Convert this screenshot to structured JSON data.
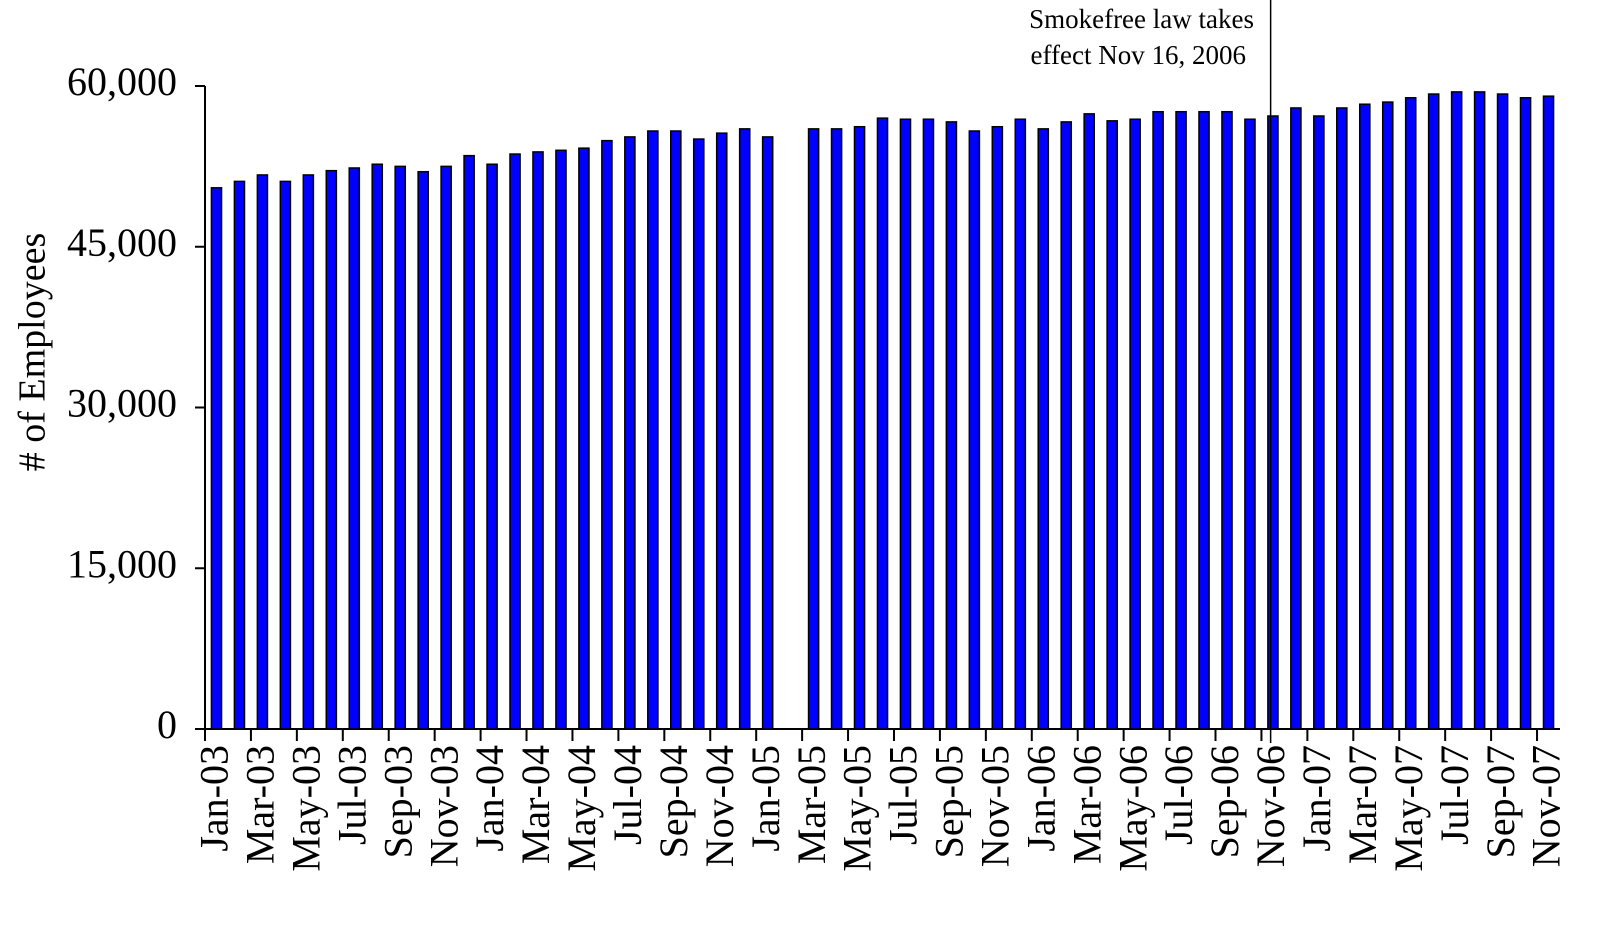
{
  "chart_data": {
    "type": "bar",
    "y_label": "# of Employees",
    "annotation": [
      "Smokefree law takes",
      "effect Nov 16, 2006"
    ],
    "color": "#0000ff",
    "categories": [
      "Jan-03",
      null,
      "Mar-03",
      null,
      "May-03",
      null,
      "Jul-03",
      null,
      "Sep-03",
      null,
      "Nov-03",
      null,
      "Jan-04",
      null,
      "Mar-04",
      null,
      "May-04",
      null,
      "Jul-04",
      null,
      "Sep-04",
      null,
      "Nov-04",
      null,
      "Jan-05",
      null,
      "Mar-05",
      null,
      "May-05",
      null,
      "Jul-05",
      null,
      "Sep-05",
      null,
      "Nov-05",
      null,
      "Jan-06",
      null,
      "Mar-06",
      null,
      "May-06",
      null,
      "Jul-06",
      null,
      "Sep-06",
      null,
      "Nov-06",
      null,
      "Jan-07",
      null,
      "Mar-07",
      null,
      "May-07",
      null,
      "Jul-07",
      null,
      "Sep-07",
      null,
      "Nov-07"
    ],
    "values": [
      50500,
      51100,
      51700,
      51100,
      51700,
      52100,
      52350,
      52700,
      52500,
      52000,
      52500,
      53500,
      52700,
      53650,
      53850,
      54000,
      54200,
      54900,
      55250,
      55800,
      55800,
      55050,
      55600,
      56000,
      55250,
      null,
      56000,
      56000,
      56200,
      57000,
      56900,
      56900,
      56650,
      55800,
      56200,
      56900,
      56000,
      56650,
      57400,
      56750,
      56900,
      57600,
      57600,
      57600,
      57600,
      56900,
      57200,
      57950,
      57200,
      57950,
      58300,
      58500,
      58900,
      59250,
      59450,
      59450,
      59250,
      58900,
      59050
    ],
    "ylim": [
      0,
      60000
    ],
    "yticks": [
      {
        "value": 0,
        "label": "0"
      },
      {
        "value": 15000,
        "label": "15,000"
      },
      {
        "value": 30000,
        "label": "30,000"
      },
      {
        "value": 45000,
        "label": "45,000"
      },
      {
        "value": 60000,
        "label": "60,000"
      }
    ],
    "grid": false
  }
}
